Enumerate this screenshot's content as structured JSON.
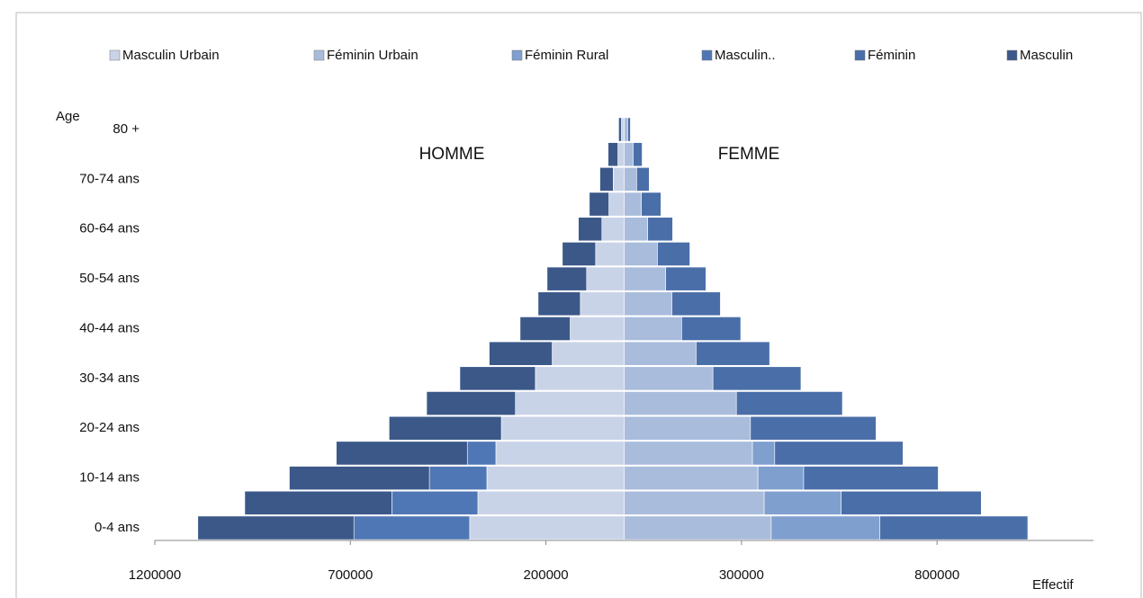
{
  "chart_data": {
    "type": "pyramid",
    "y_label": "Age",
    "x_label": "Effectif",
    "annotations": [
      "HOMME",
      "FEMME"
    ],
    "categories": [
      "0-4 ans",
      null,
      "10-14 ans",
      null,
      "20-24 ans",
      null,
      "30-34 ans",
      null,
      "40-44 ans",
      null,
      "50-54 ans",
      null,
      "60-64 ans",
      null,
      "70-74 ans",
      null,
      "80 +"
    ],
    "series": [
      {
        "name": "Masculin Urbain",
        "color": "#c9d3e8",
        "values": [
          -395000,
          -374000,
          -351000,
          -328000,
          -314000,
          -278000,
          -227000,
          -184000,
          -138000,
          -112000,
          -96000,
          -73000,
          -57000,
          -39000,
          -28000,
          -16000,
          -7000
        ]
      },
      {
        "name": "Féminin Urbain",
        "color": "#a9bcdc",
        "values": [
          376000,
          358000,
          342000,
          328000,
          323000,
          287000,
          227000,
          184000,
          147000,
          122000,
          106000,
          85000,
          60000,
          44000,
          32000,
          23000,
          9000
        ]
      },
      {
        "name": "Féminin Rural",
        "color": "#7f9fcf",
        "values": [
          278000,
          197000,
          117000,
          57000,
          0,
          0,
          0,
          0,
          0,
          0,
          0,
          0,
          0,
          0,
          0,
          0,
          0
        ]
      },
      {
        "name": "Masculin..",
        "color": "#5077b5",
        "values": [
          -296000,
          -220000,
          -147000,
          -73000,
          0,
          0,
          0,
          0,
          0,
          0,
          0,
          0,
          0,
          0,
          0,
          0,
          0
        ]
      },
      {
        "name": "Féminin",
        "color": "#4a6ea8",
        "values": [
          378000,
          358000,
          344000,
          328000,
          321000,
          271000,
          225000,
          188000,
          151000,
          124000,
          103000,
          83000,
          64000,
          50000,
          32000,
          23000,
          7000
        ]
      },
      {
        "name": "Masculin",
        "color": "#3b5889",
        "values": [
          -399000,
          -376000,
          -358000,
          -335000,
          -287000,
          -227000,
          -193000,
          -161000,
          -128000,
          -108000,
          -101000,
          -85000,
          -60000,
          -50000,
          -34000,
          -25000,
          -7000
        ]
      }
    ],
    "xlim": [
      -1200000,
      1200000
    ],
    "xticks": [
      {
        "value": -1200000,
        "label": "1200000"
      },
      {
        "value": -700000,
        "label": "700000"
      },
      {
        "value": -200000,
        "label": "200000"
      },
      300000,
      800000
    ],
    "legend": "top"
  }
}
